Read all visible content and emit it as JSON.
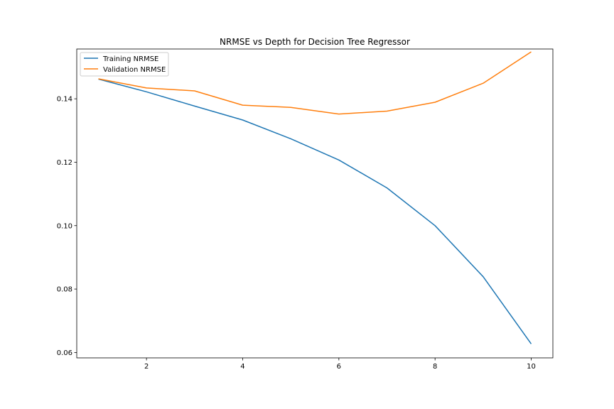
{
  "chart_data": {
    "type": "line",
    "title": "NRMSE vs Depth for Decision Tree Regressor",
    "xlabel": "",
    "ylabel": "",
    "xlim": [
      0.55,
      10.45
    ],
    "ylim": [
      0.0583,
      0.1557
    ],
    "xticks": [
      2,
      4,
      6,
      8,
      10
    ],
    "yticks": [
      0.06,
      0.08,
      0.1,
      0.12,
      0.14
    ],
    "ytick_labels": [
      "0.06",
      "0.08",
      "0.10",
      "0.12",
      "0.14"
    ],
    "x": [
      1,
      2,
      3,
      4,
      5,
      6,
      7,
      8,
      9,
      10
    ],
    "series": [
      {
        "name": "Training NRMSE",
        "color": "#1f77b4",
        "values": [
          0.1462,
          0.1422,
          0.1377,
          0.1333,
          0.1274,
          0.1207,
          0.1119,
          0.1,
          0.0839,
          0.0627
        ]
      },
      {
        "name": "Validation NRMSE",
        "color": "#ff7f0e",
        "values": [
          0.1463,
          0.1434,
          0.1425,
          0.138,
          0.1373,
          0.1352,
          0.1361,
          0.1389,
          0.1449,
          0.1548
        ]
      }
    ],
    "grid": false,
    "legend_position": "top-left"
  }
}
